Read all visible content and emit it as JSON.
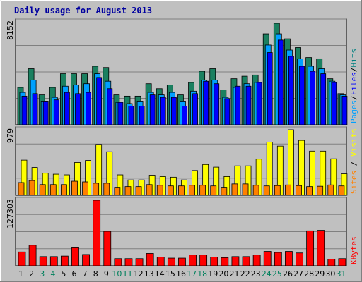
{
  "chart_data": {
    "type": "bar",
    "title": "Daily usage for August 2013",
    "categories": [
      "1",
      "2",
      "3",
      "4",
      "5",
      "6",
      "7",
      "8",
      "9",
      "10",
      "11",
      "12",
      "13",
      "14",
      "15",
      "16",
      "17",
      "18",
      "19",
      "20",
      "21",
      "22",
      "23",
      "24",
      "25",
      "26",
      "27",
      "28",
      "29",
      "30",
      "31"
    ],
    "weekend_days": [
      "3",
      "4",
      "10",
      "11",
      "17",
      "18",
      "24",
      "25",
      "31"
    ],
    "panels": [
      {
        "id": "hits-files-pages",
        "max_label": "8152",
        "ylim": [
          0,
          8152
        ],
        "legend": [
          "Pages",
          "Files",
          "Hits"
        ],
        "legend_colors": [
          "#00A0FF",
          "#0000FF",
          "#008080"
        ],
        "series": [
          {
            "name": "Hits",
            "color": "#1b8060",
            "values": [
              3000,
              4500,
              2400,
              3000,
              4100,
              4100,
              4100,
              4700,
              4600,
              2400,
              2300,
              2300,
              3300,
              2900,
              3200,
              2400,
              3400,
              4300,
              4500,
              2800,
              3700,
              3900,
              4000,
              7300,
              8152,
              6900,
              6200,
              5400,
              5300,
              3700,
              2500
            ]
          },
          {
            "name": "Files",
            "color": "#00A0FF",
            "values": [
              2600,
              3600,
              1900,
              2200,
              3100,
              3200,
              3300,
              4100,
              3500,
              1800,
              1700,
              1900,
              2600,
              2400,
              2600,
              1900,
              2700,
              3600,
              3600,
              2200,
              3000,
              3300,
              3400,
              6400,
              7300,
              6000,
              5300,
              4700,
              4500,
              3500,
              2400
            ]
          },
          {
            "name": "Pages",
            "color": "#0000FF",
            "values": [
              2300,
              2500,
              1900,
              2000,
              2600,
              2500,
              2600,
              3800,
              2900,
              1800,
              1500,
              1500,
              2400,
              2200,
              2200,
              1500,
              2500,
              3500,
              3300,
              2100,
              3100,
              3100,
              3400,
              5800,
              6800,
              5500,
              4700,
              4300,
              4100,
              3400,
              2300
            ]
          }
        ]
      },
      {
        "id": "visits-sites",
        "max_label": "979",
        "ylim": [
          0,
          979
        ],
        "legend": [
          "Sites",
          "/",
          "Visits"
        ],
        "legend_colors": [
          "#FF8000",
          "#000000",
          "#FFFF00"
        ],
        "series": [
          {
            "name": "Visits",
            "color": "#ffff00",
            "values": [
              525,
              415,
              330,
              315,
              305,
              490,
              520,
              760,
              650,
              305,
              230,
              230,
              300,
              280,
              270,
              230,
              370,
              460,
              420,
              280,
              440,
              440,
              540,
              795,
              735,
              979,
              820,
              660,
              660,
              545,
              320
            ]
          },
          {
            "name": "Sites",
            "color": "#ff8000",
            "values": [
              190,
              220,
              160,
              160,
              160,
              210,
              200,
              180,
              180,
              120,
              130,
              130,
              160,
              150,
              140,
              140,
              150,
              150,
              140,
              120,
              170,
              170,
              150,
              140,
              145,
              155,
              145,
              130,
              135,
              155,
              140
            ]
          }
        ]
      },
      {
        "id": "kbytes",
        "max_label": "127303",
        "ylim": [
          0,
          127303
        ],
        "legend": [
          "KBytes"
        ],
        "legend_colors": [
          "#FF0000"
        ],
        "series": [
          {
            "name": "KBytes",
            "color": "#ff0000",
            "values": [
              27000,
              40000,
              18000,
              18000,
              19000,
              35000,
              22000,
              127303,
              67000,
              14000,
              14000,
              14000,
              24000,
              17000,
              15000,
              15000,
              21000,
              21000,
              17000,
              16000,
              18000,
              18000,
              21000,
              28000,
              26000,
              28000,
              25000,
              68000,
              69000,
              13000,
              14000
            ]
          }
        ]
      }
    ]
  },
  "colors": {
    "title": "#0000A0",
    "day_weekday": "#000000",
    "day_weekend": "#00805C",
    "plot_bg": "#C0C0C0",
    "page_bg": "#C0C0C0"
  }
}
